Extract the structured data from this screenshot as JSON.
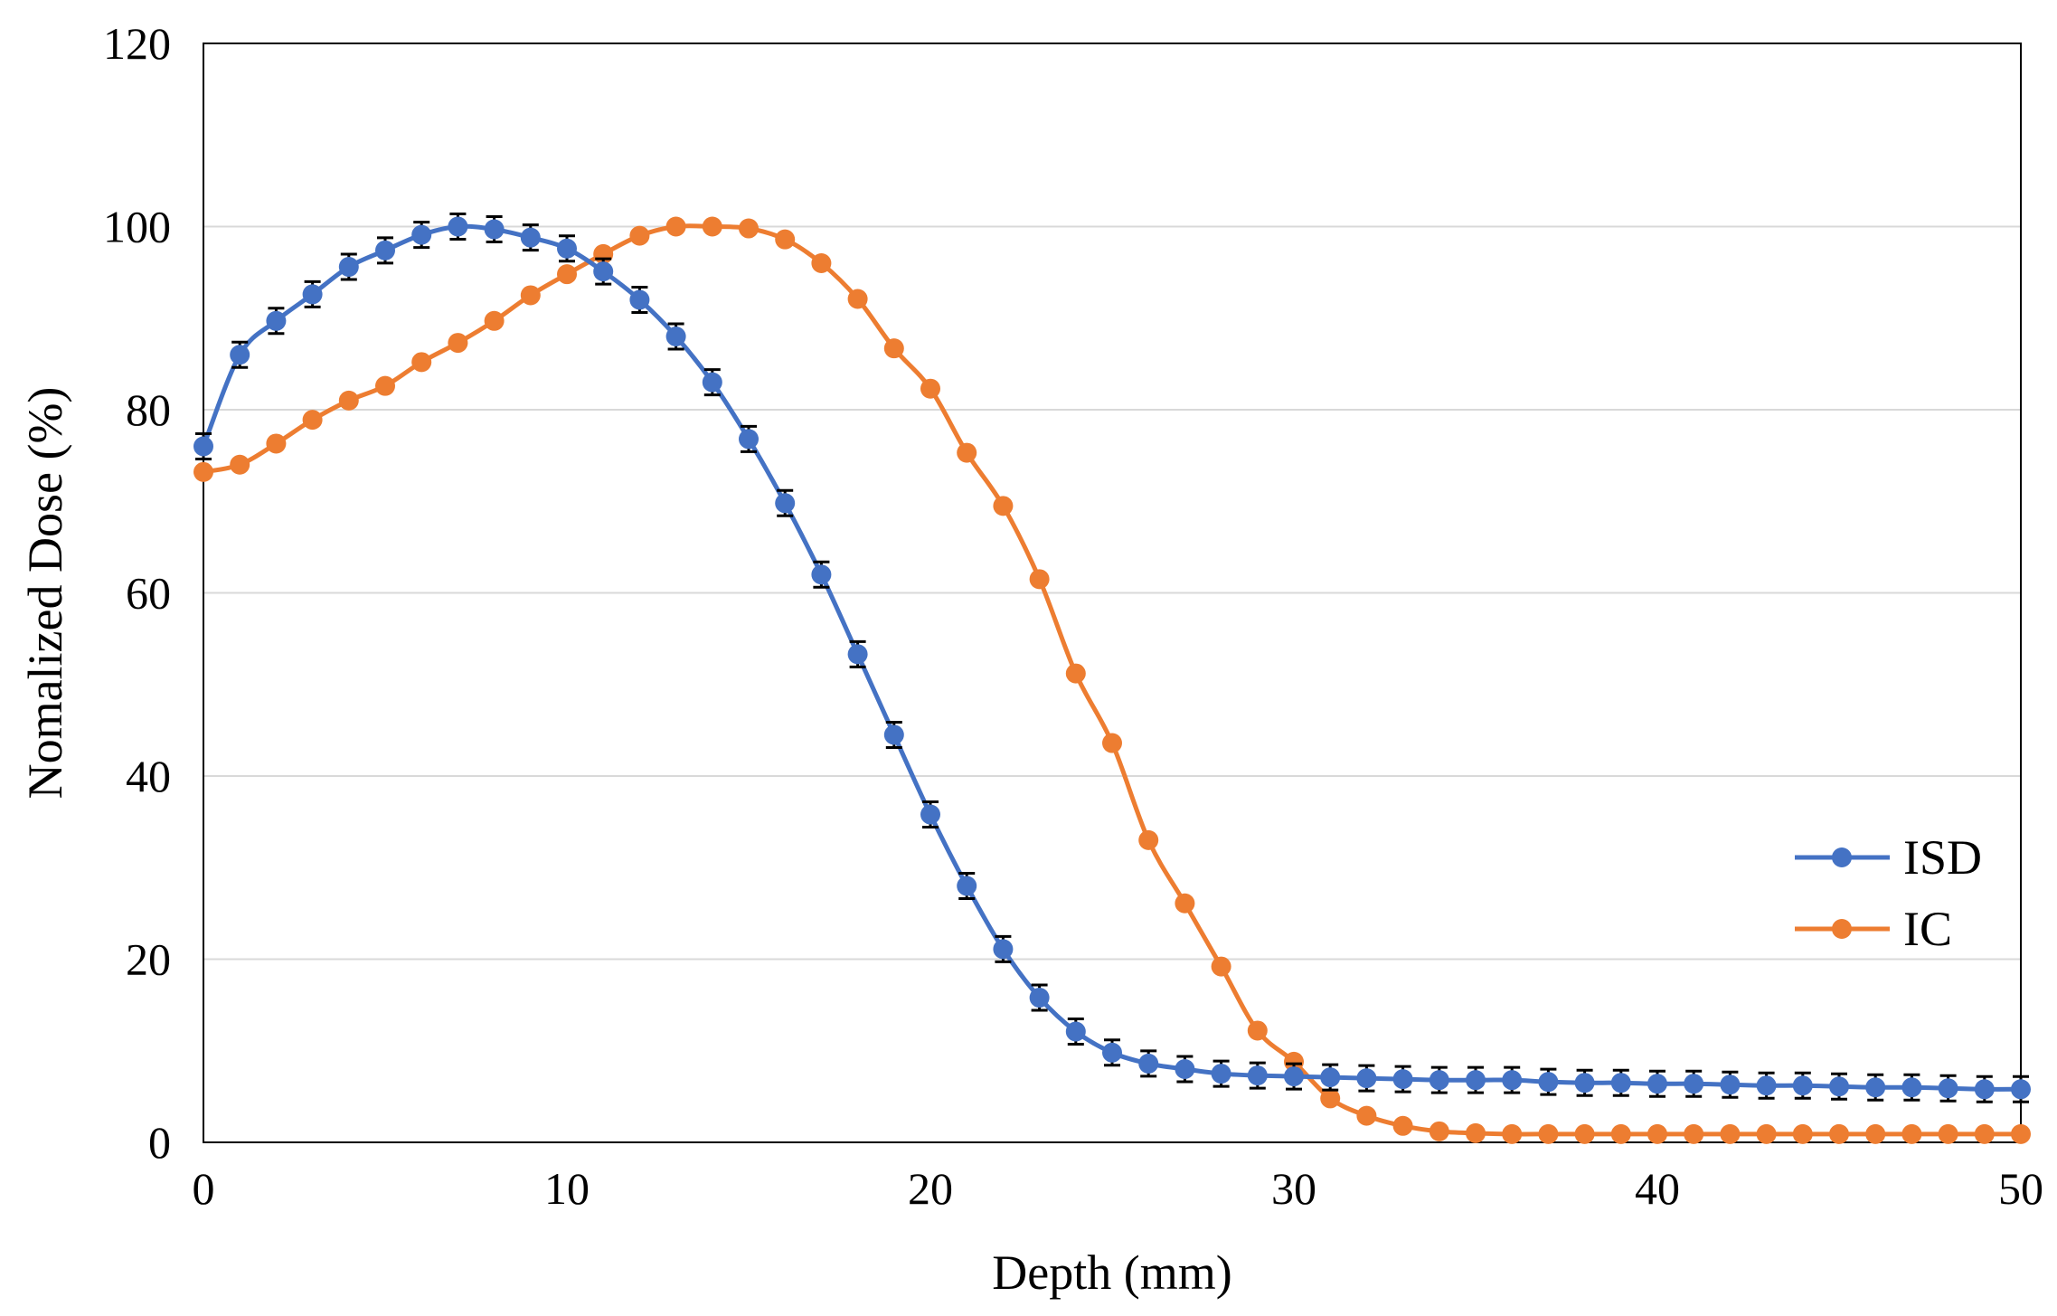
{
  "chart_data": {
    "type": "line",
    "title": "",
    "xlabel": "Depth (mm)",
    "ylabel": "Nomalized Dose (%)",
    "xlim": [
      0,
      50
    ],
    "ylim": [
      0,
      120
    ],
    "x_ticks": [
      0,
      10,
      20,
      30,
      40,
      50
    ],
    "y_ticks": [
      0,
      20,
      40,
      60,
      80,
      100,
      120
    ],
    "x_tick_labels": [
      "0",
      "10",
      "20",
      "30",
      "40",
      "50"
    ],
    "y_tick_labels": [
      "0",
      "20",
      "40",
      "60",
      "80",
      "100",
      "120"
    ],
    "grid": "horizontal",
    "legend_position": "right",
    "x": [
      0,
      1,
      2,
      3,
      4,
      5,
      6,
      7,
      8,
      9,
      10,
      11,
      12,
      13,
      14,
      15,
      16,
      17,
      18,
      19,
      20,
      21,
      22,
      23,
      24,
      25,
      26,
      27,
      28,
      29,
      30,
      31,
      32,
      33,
      34,
      35,
      36,
      37,
      38,
      39,
      40,
      41,
      42,
      43,
      44,
      45,
      46,
      47,
      48,
      49,
      50
    ],
    "series": [
      {
        "name": "ISD",
        "color": "#4472C4",
        "error_bars": true,
        "values": [
          76.0,
          86.0,
          89.7,
          92.6,
          95.6,
          97.4,
          99.1,
          100.0,
          99.7,
          98.8,
          97.6,
          95.1,
          92.0,
          88.0,
          83.0,
          76.8,
          69.8,
          62.0,
          53.3,
          44.5,
          35.8,
          28.0,
          21.1,
          15.8,
          12.1,
          9.8,
          8.6,
          8.0,
          7.5,
          7.3,
          7.2,
          7.1,
          7.0,
          6.9,
          6.8,
          6.8,
          6.8,
          6.6,
          6.5,
          6.5,
          6.4,
          6.4,
          6.3,
          6.2,
          6.2,
          6.1,
          6.0,
          6.0,
          5.9,
          5.8,
          5.8
        ]
      },
      {
        "name": "IC",
        "color": "#ED7D31",
        "error_bars": false,
        "values": [
          73.2,
          74.0,
          76.3,
          78.9,
          81.0,
          82.6,
          85.2,
          87.3,
          89.7,
          92.5,
          94.8,
          97.0,
          99.0,
          100.0,
          100.0,
          99.8,
          98.6,
          96.0,
          92.1,
          86.7,
          82.3,
          75.3,
          69.5,
          61.5,
          51.2,
          43.6,
          33.0,
          26.1,
          19.2,
          12.2,
          8.8,
          4.8,
          2.9,
          1.8,
          1.2,
          1.0,
          0.9,
          0.9,
          0.9,
          0.9,
          0.9,
          0.9,
          0.9,
          0.9,
          0.9,
          0.9,
          0.9,
          0.9,
          0.9,
          0.9,
          0.9
        ]
      }
    ],
    "error_bar_color": "#000000"
  }
}
